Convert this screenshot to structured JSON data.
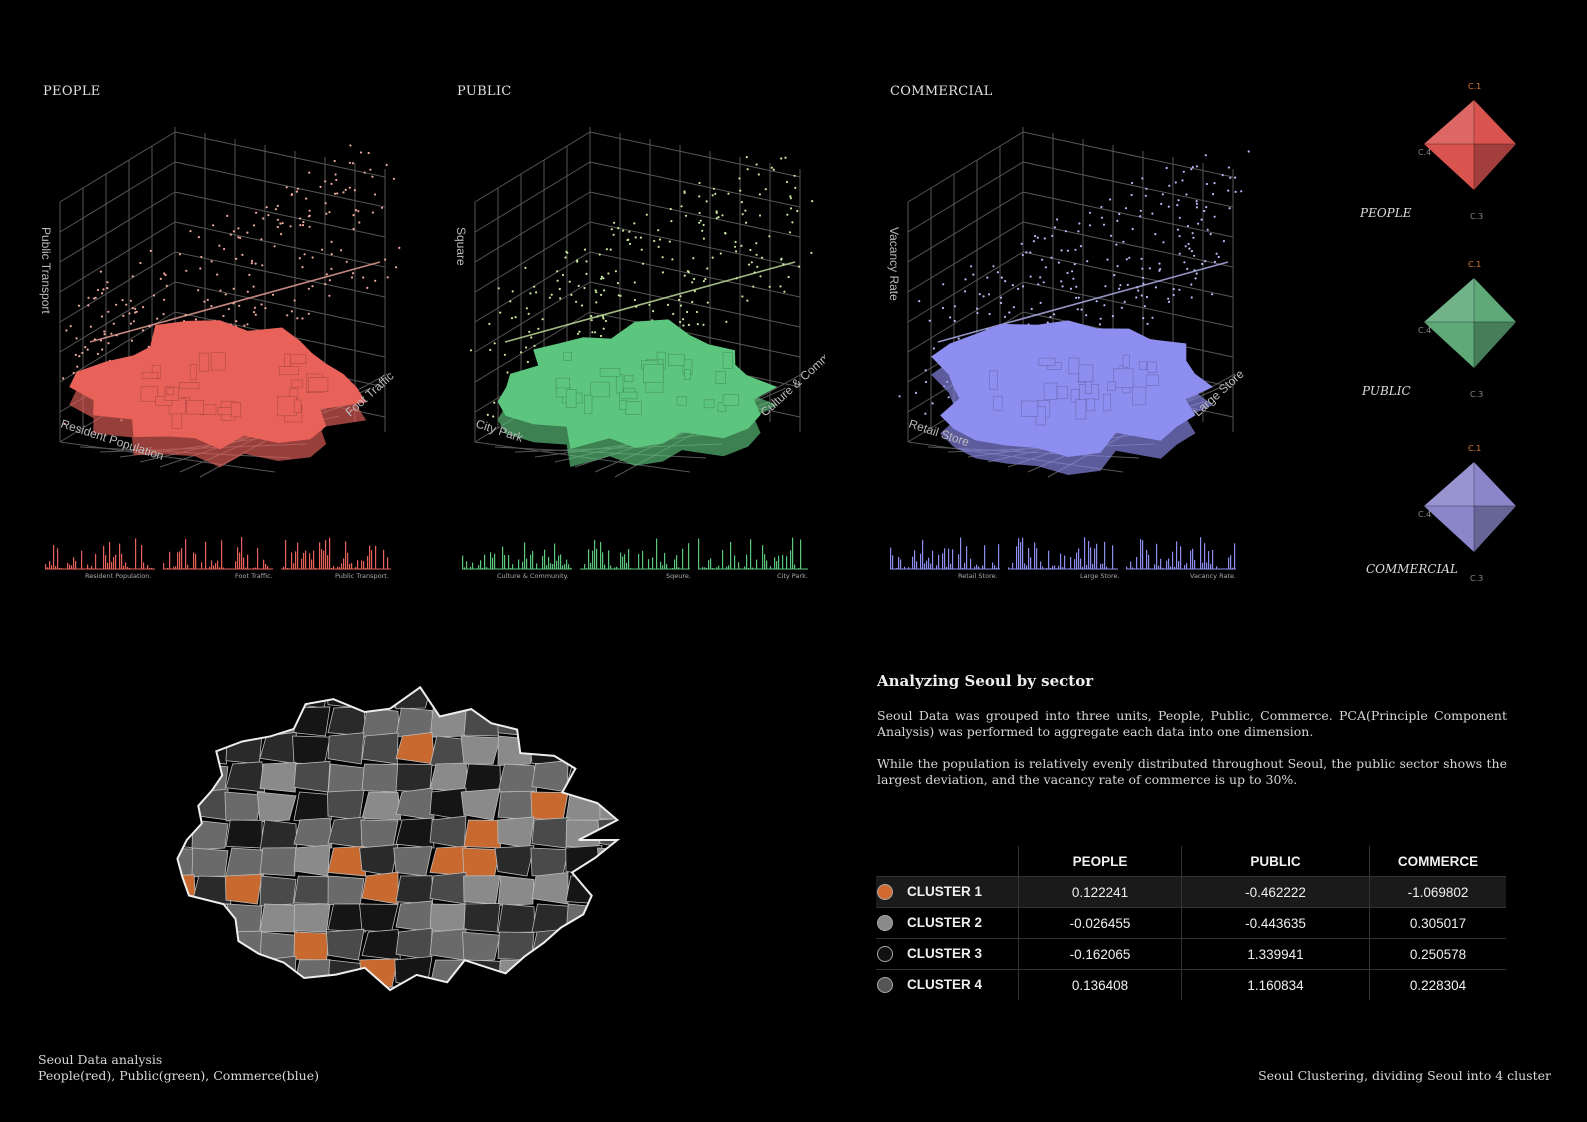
{
  "panels": [
    {
      "title": "PEOPLE",
      "color": "#e8625a",
      "dots": "#f1a89e",
      "axes": {
        "vertical": "Public Transport",
        "left": "Resident Population",
        "right": "Foot Traffic"
      },
      "hist_labels": [
        "Resident Population.",
        "Foot Traffic.",
        "Public Transport."
      ]
    },
    {
      "title": "PUBLIC",
      "color": "#5dc67e",
      "dots": "#c7e7a0",
      "axes": {
        "vertical": "Square",
        "left": "City Park",
        "right": "Culture & Community"
      },
      "hist_labels": [
        "Culture & Community.",
        "Sqeure.",
        "City Park."
      ]
    },
    {
      "title": "COMMERCIAL",
      "color": "#8e8ef0",
      "dots": "#b9b9f7",
      "axes": {
        "vertical": "Vacancy Rate",
        "left": "Retail Store",
        "right": "Large Store"
      },
      "hist_labels": [
        "Retail Store.",
        "Large Store.",
        "Vacancy Rate."
      ]
    }
  ],
  "radars": [
    {
      "name": "PEOPLE",
      "color": "#d9534f",
      "c1": "C.1",
      "c3": "C.3",
      "c4": "C.4"
    },
    {
      "name": "PUBLIC",
      "color": "#5fa878",
      "c1": "C.1",
      "c3": "C.3",
      "c4": "C.4"
    },
    {
      "name": "COMMERCIAL",
      "color": "#8a86c9",
      "c1": "C.1",
      "c3": "C.3",
      "c4": "C.4"
    }
  ],
  "analysis": {
    "title": "Analyzing Seoul by sector",
    "p1": "Seoul Data was grouped into three units, People, Public, Commerce. PCA(Principle Component Analysis) was performed to aggregate each data into one dimension.",
    "p2": "While the population is relatively evenly distributed throughout Seoul, the public sector shows the largest deviation, and the vacancy rate of commerce is up to 30%."
  },
  "table": {
    "headers": [
      "",
      "PEOPLE",
      "PUBLIC",
      "COMMERCE"
    ],
    "rows": [
      {
        "label": "CLUSTER 1",
        "color": "#d2692e",
        "values": [
          "0.122241",
          "-0.462222",
          "-1.069802"
        ]
      },
      {
        "label": "CLUSTER 2",
        "color": "#8a8a8a",
        "values": [
          "-0.026455",
          "-0.443635",
          "0.305017"
        ]
      },
      {
        "label": "CLUSTER 3",
        "color": "#111111",
        "values": [
          "-0.162065",
          "1.339941",
          "0.250578"
        ]
      },
      {
        "label": "CLUSTER 4",
        "color": "#555555",
        "values": [
          "0.136408",
          "1.160834",
          "0.228304"
        ]
      }
    ]
  },
  "footer": {
    "left_line1": "Seoul Data analysis",
    "left_line2": "People(red), Public(green), Commerce(blue)",
    "right": "Seoul Clustering, dividing Seoul into 4 cluster"
  }
}
